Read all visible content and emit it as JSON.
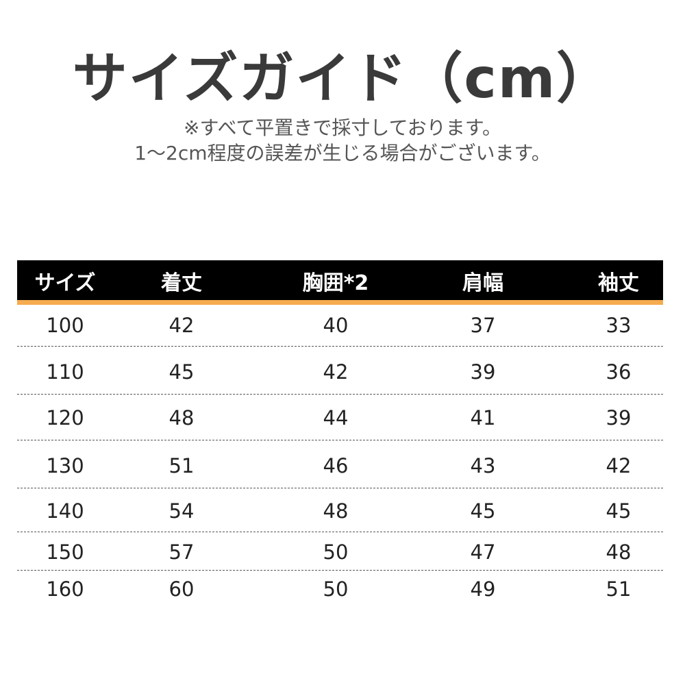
{
  "title": "サイズガイド（cm）",
  "notes": [
    "※すべて平置きで採寸しております。",
    "1〜2cm程度の誤差が生じる場合がございます。"
  ],
  "colors": {
    "header_bg": "#000000",
    "header_accent": "#f5ab4f",
    "title": "#3a3a3a"
  },
  "table": {
    "headers": [
      "サイズ",
      "着丈",
      "胸囲*2",
      "肩幅",
      "袖丈"
    ],
    "rows": [
      [
        "100",
        "42",
        "40",
        "37",
        "33"
      ],
      [
        "110",
        "45",
        "42",
        "39",
        "36"
      ],
      [
        "120",
        "48",
        "44",
        "41",
        "39"
      ],
      [
        "130",
        "51",
        "46",
        "43",
        "42"
      ],
      [
        "140",
        "54",
        "48",
        "45",
        "45"
      ],
      [
        "150",
        "57",
        "50",
        "47",
        "48"
      ],
      [
        "160",
        "60",
        "50",
        "49",
        "51"
      ]
    ]
  }
}
